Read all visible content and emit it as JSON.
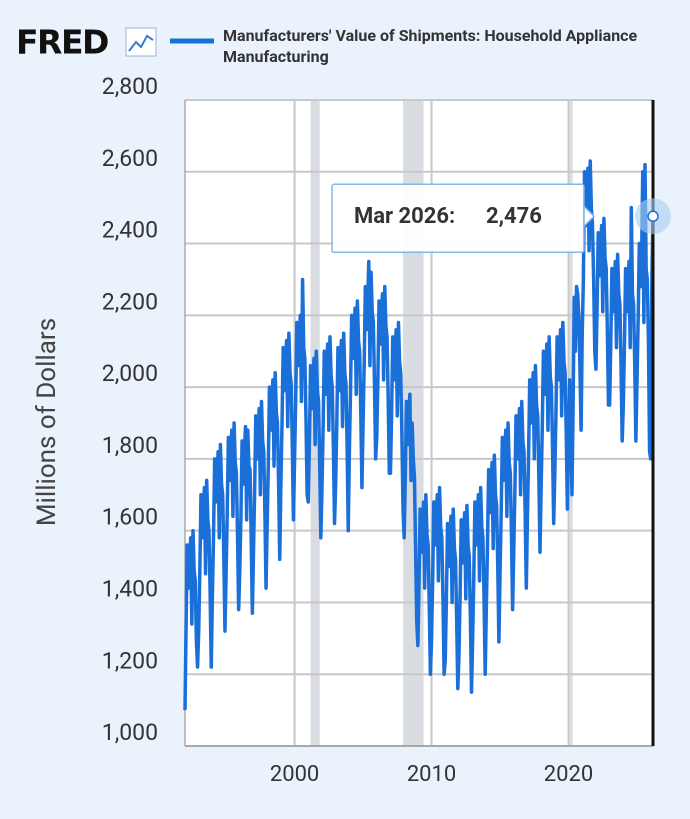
{
  "logo": "FRED",
  "chart_data": {
    "type": "line",
    "y_label": "Millions of Dollars",
    "x": [
      "1992-01",
      "1992-02",
      "1992-03",
      "1992-04",
      "1992-05",
      "1992-06",
      "1992-07",
      "1992-08",
      "1992-09",
      "1992-10",
      "1992-11",
      "1992-12",
      "1993-01",
      "1993-02",
      "1993-03",
      "1993-04",
      "1993-05",
      "1993-06",
      "1993-07",
      "1993-08",
      "1993-09",
      "1993-10",
      "1993-11",
      "1993-12",
      "1994-01",
      "1994-02",
      "1994-03",
      "1994-04",
      "1994-05",
      "1994-06",
      "1994-07",
      "1994-08",
      "1994-09",
      "1994-10",
      "1994-11",
      "1994-12",
      "1995-01",
      "1995-02",
      "1995-03",
      "1995-04",
      "1995-05",
      "1995-06",
      "1995-07",
      "1995-08",
      "1995-09",
      "1995-10",
      "1995-11",
      "1995-12",
      "1996-01",
      "1996-02",
      "1996-03",
      "1996-04",
      "1996-05",
      "1996-06",
      "1996-07",
      "1996-08",
      "1996-09",
      "1996-10",
      "1996-11",
      "1996-12",
      "1997-01",
      "1997-02",
      "1997-03",
      "1997-04",
      "1997-05",
      "1997-06",
      "1997-07",
      "1997-08",
      "1997-09",
      "1997-10",
      "1997-11",
      "1997-12",
      "1998-01",
      "1998-02",
      "1998-03",
      "1998-04",
      "1998-05",
      "1998-06",
      "1998-07",
      "1998-08",
      "1998-09",
      "1998-10",
      "1998-11",
      "1998-12",
      "1999-01",
      "1999-02",
      "1999-03",
      "1999-04",
      "1999-05",
      "1999-06",
      "1999-07",
      "1999-08",
      "1999-09",
      "1999-10",
      "1999-11",
      "1999-12",
      "2000-01",
      "2000-02",
      "2000-03",
      "2000-04",
      "2000-05",
      "2000-06",
      "2000-07",
      "2000-08",
      "2000-09",
      "2000-10",
      "2000-11",
      "2000-12",
      "2001-01",
      "2001-02",
      "2001-03",
      "2001-04",
      "2001-05",
      "2001-06",
      "2001-07",
      "2001-08",
      "2001-09",
      "2001-10",
      "2001-11",
      "2001-12",
      "2002-01",
      "2002-02",
      "2002-03",
      "2002-04",
      "2002-05",
      "2002-06",
      "2002-07",
      "2002-08",
      "2002-09",
      "2002-10",
      "2002-11",
      "2002-12",
      "2003-01",
      "2003-02",
      "2003-03",
      "2003-04",
      "2003-05",
      "2003-06",
      "2003-07",
      "2003-08",
      "2003-09",
      "2003-10",
      "2003-11",
      "2003-12",
      "2004-01",
      "2004-02",
      "2004-03",
      "2004-04",
      "2004-05",
      "2004-06",
      "2004-07",
      "2004-08",
      "2004-09",
      "2004-10",
      "2004-11",
      "2004-12",
      "2005-01",
      "2005-02",
      "2005-03",
      "2005-04",
      "2005-05",
      "2005-06",
      "2005-07",
      "2005-08",
      "2005-09",
      "2005-10",
      "2005-11",
      "2005-12",
      "2006-01",
      "2006-02",
      "2006-03",
      "2006-04",
      "2006-05",
      "2006-06",
      "2006-07",
      "2006-08",
      "2006-09",
      "2006-10",
      "2006-11",
      "2006-12",
      "2007-01",
      "2007-02",
      "2007-03",
      "2007-04",
      "2007-05",
      "2007-06",
      "2007-07",
      "2007-08",
      "2007-09",
      "2007-10",
      "2007-11",
      "2007-12",
      "2008-01",
      "2008-02",
      "2008-03",
      "2008-04",
      "2008-05",
      "2008-06",
      "2008-07",
      "2008-08",
      "2008-09",
      "2008-10",
      "2008-11",
      "2008-12",
      "2009-01",
      "2009-02",
      "2009-03",
      "2009-04",
      "2009-05",
      "2009-06",
      "2009-07",
      "2009-08",
      "2009-09",
      "2009-10",
      "2009-11",
      "2009-12",
      "2010-01",
      "2010-02",
      "2010-03",
      "2010-04",
      "2010-05",
      "2010-06",
      "2010-07",
      "2010-08",
      "2010-09",
      "2010-10",
      "2010-11",
      "2010-12",
      "2011-01",
      "2011-02",
      "2011-03",
      "2011-04",
      "2011-05",
      "2011-06",
      "2011-07",
      "2011-08",
      "2011-09",
      "2011-10",
      "2011-11",
      "2011-12",
      "2012-01",
      "2012-02",
      "2012-03",
      "2012-04",
      "2012-05",
      "2012-06",
      "2012-07",
      "2012-08",
      "2012-09",
      "2012-10",
      "2012-11",
      "2012-12",
      "2013-01",
      "2013-02",
      "2013-03",
      "2013-04",
      "2013-05",
      "2013-06",
      "2013-07",
      "2013-08",
      "2013-09",
      "2013-10",
      "2013-11",
      "2013-12",
      "2014-01",
      "2014-02",
      "2014-03",
      "2014-04",
      "2014-05",
      "2014-06",
      "2014-07",
      "2014-08",
      "2014-09",
      "2014-10",
      "2014-11",
      "2014-12",
      "2015-01",
      "2015-02",
      "2015-03",
      "2015-04",
      "2015-05",
      "2015-06",
      "2015-07",
      "2015-08",
      "2015-09",
      "2015-10",
      "2015-11",
      "2015-12",
      "2016-01",
      "2016-02",
      "2016-03",
      "2016-04",
      "2016-05",
      "2016-06",
      "2016-07",
      "2016-08",
      "2016-09",
      "2016-10",
      "2016-11",
      "2016-12",
      "2017-01",
      "2017-02",
      "2017-03",
      "2017-04",
      "2017-05",
      "2017-06",
      "2017-07",
      "2017-08",
      "2017-09",
      "2017-10",
      "2017-11",
      "2017-12",
      "2018-01",
      "2018-02",
      "2018-03",
      "2018-04",
      "2018-05",
      "2018-06",
      "2018-07",
      "2018-08",
      "2018-09",
      "2018-10",
      "2018-11",
      "2018-12",
      "2019-01",
      "2019-02",
      "2019-03",
      "2019-04",
      "2019-05",
      "2019-06",
      "2019-07",
      "2019-08",
      "2019-09",
      "2019-10",
      "2019-11",
      "2019-12",
      "2020-01",
      "2020-02",
      "2020-03",
      "2020-04",
      "2020-05",
      "2020-06",
      "2020-07",
      "2020-08",
      "2020-09",
      "2020-10",
      "2020-11",
      "2020-12",
      "2021-01",
      "2021-02",
      "2021-03",
      "2021-04",
      "2021-05",
      "2021-06",
      "2021-07",
      "2021-08",
      "2021-09",
      "2021-10",
      "2021-11",
      "2021-12",
      "2022-01",
      "2022-02",
      "2022-03",
      "2022-04",
      "2022-05",
      "2022-06",
      "2022-07",
      "2022-08",
      "2022-09",
      "2022-10",
      "2022-11",
      "2022-12",
      "2023-01",
      "2023-02",
      "2023-03",
      "2023-04",
      "2023-05",
      "2023-06",
      "2023-07",
      "2023-08",
      "2023-09",
      "2023-10",
      "2023-11",
      "2023-12",
      "2024-01",
      "2024-02",
      "2024-03",
      "2024-04",
      "2024-05",
      "2024-06",
      "2024-07",
      "2024-08",
      "2024-09",
      "2024-10",
      "2024-11",
      "2024-12",
      "2025-01",
      "2025-02",
      "2025-03",
      "2025-04",
      "2025-05",
      "2025-06",
      "2025-07",
      "2025-08",
      "2025-09",
      "2025-10",
      "2025-11",
      "2025-12",
      "2026-01",
      "2026-02",
      "2026-03"
    ],
    "series": [
      {
        "name": "Manufacturers' Value of Shipments: Household Appliance Manufacturing",
        "color": "#1a6fd8",
        "values": [
          1100,
          1350,
          1560,
          1440,
          1510,
          1580,
          1340,
          1600,
          1490,
          1460,
          1290,
          1220,
          1320,
          1490,
          1700,
          1580,
          1650,
          1720,
          1480,
          1740,
          1630,
          1600,
          1430,
          1220,
          1420,
          1590,
          1800,
          1680,
          1750,
          1820,
          1580,
          1840,
          1730,
          1700,
          1530,
          1320,
          1480,
          1650,
          1860,
          1740,
          1810,
          1880,
          1640,
          1900,
          1790,
          1760,
          1590,
          1380,
          1490,
          1640,
          1850,
          1730,
          1820,
          1890,
          1630,
          1880,
          1780,
          1770,
          1580,
          1370,
          1540,
          1710,
          1920,
          1800,
          1870,
          1940,
          1700,
          1960,
          1850,
          1820,
          1650,
          1440,
          1620,
          1790,
          2000,
          1880,
          1950,
          2020,
          1780,
          2040,
          1930,
          1900,
          1730,
          1520,
          1730,
          1900,
          2110,
          1990,
          2060,
          2130,
          1890,
          2150,
          2040,
          2010,
          1840,
          1630,
          1800,
          1970,
          2180,
          2060,
          2130,
          2200,
          1960,
          2300,
          2110,
          2080,
          1910,
          1700,
          1680,
          1850,
          2060,
          1940,
          2010,
          2080,
          1840,
          2100,
          1990,
          1960,
          1790,
          1580,
          1720,
          1890,
          2100,
          1980,
          2050,
          2120,
          1880,
          2140,
          2030,
          2000,
          1830,
          1620,
          1730,
          1900,
          2110,
          1990,
          2060,
          2130,
          1890,
          2150,
          2040,
          2010,
          1840,
          1600,
          1820,
          1990,
          2200,
          2080,
          2150,
          2220,
          1980,
          2240,
          2130,
          2100,
          1930,
          1720,
          1900,
          2070,
          2280,
          2160,
          2230,
          2350,
          2060,
          2320,
          2210,
          2180,
          2010,
          1800,
          1860,
          2030,
          2240,
          2120,
          2190,
          2260,
          2020,
          2280,
          2170,
          2140,
          1970,
          1760,
          1760,
          1930,
          2140,
          2020,
          2090,
          2160,
          1920,
          2180,
          2070,
          2040,
          1870,
          1660,
          1580,
          1750,
          1960,
          1840,
          1910,
          1980,
          1740,
          1900,
          1800,
          1750,
          1550,
          1350,
          1280,
          1450,
          1660,
          1540,
          1610,
          1680,
          1440,
          1700,
          1590,
          1560,
          1390,
          1200,
          1300,
          1470,
          1680,
          1560,
          1630,
          1700,
          1460,
          1720,
          1610,
          1580,
          1410,
          1200,
          1240,
          1410,
          1620,
          1500,
          1570,
          1640,
          1400,
          1660,
          1550,
          1520,
          1350,
          1160,
          1250,
          1420,
          1630,
          1510,
          1580,
          1650,
          1410,
          1670,
          1560,
          1530,
          1360,
          1150,
          1300,
          1470,
          1680,
          1560,
          1630,
          1700,
          1460,
          1720,
          1610,
          1580,
          1410,
          1200,
          1390,
          1560,
          1770,
          1650,
          1720,
          1790,
          1550,
          1810,
          1700,
          1670,
          1500,
          1290,
          1480,
          1650,
          1860,
          1740,
          1810,
          1880,
          1640,
          1900,
          1790,
          1760,
          1590,
          1380,
          1540,
          1710,
          1920,
          1800,
          1870,
          1940,
          1700,
          1960,
          1850,
          1820,
          1650,
          1440,
          1640,
          1810,
          2020,
          1900,
          1970,
          2040,
          1800,
          2060,
          1950,
          1920,
          1750,
          1540,
          1720,
          1890,
          2100,
          1980,
          2050,
          2120,
          1880,
          2140,
          2030,
          2000,
          1830,
          1620,
          1760,
          1930,
          2140,
          2020,
          2090,
          2160,
          1920,
          2180,
          2070,
          2040,
          1870,
          1660,
          1850,
          2020,
          1900,
          1700,
          1950,
          2250,
          2100,
          2280,
          2260,
          2200,
          2050,
          1880,
          2150,
          2300,
          2600,
          2450,
          2520,
          2610,
          2380,
          2630,
          2500,
          2450,
          2300,
          2100,
          2050,
          2220,
          2430,
          2310,
          2380,
          2450,
          2210,
          2470,
          2360,
          2330,
          2160,
          1950,
          1950,
          2120,
          2330,
          2210,
          2280,
          2350,
          2110,
          2370,
          2260,
          2230,
          2060,
          1850,
          1950,
          2120,
          2330,
          2210,
          2280,
          2350,
          2110,
          2500,
          2260,
          2230,
          2060,
          1850,
          2020,
          2190,
          2400,
          2280,
          2350,
          2600,
          2180,
          2620,
          2330,
          2300,
          2130,
          1820,
          1800,
          2300,
          2476
        ]
      }
    ],
    "xlim": [
      "1992-01",
      "2026-03"
    ],
    "xticks": [
      2000,
      2010,
      2020
    ],
    "ylim": [
      1000,
      2800
    ],
    "yticks": [
      {
        "value": 1000,
        "label": "1,000"
      },
      {
        "value": 1200,
        "label": "1,200"
      },
      {
        "value": 1400,
        "label": "1,400"
      },
      {
        "value": 1600,
        "label": "1,600"
      },
      {
        "value": 1800,
        "label": "1,800"
      },
      {
        "value": 2000,
        "label": "2,000"
      },
      {
        "value": 2200,
        "label": "2,200"
      },
      {
        "value": 2400,
        "label": "2,400"
      },
      {
        "value": 2600,
        "label": "2,600"
      },
      {
        "value": 2800,
        "label": "2,800"
      }
    ],
    "grid": true,
    "recessions": [
      [
        "2001-03",
        "2001-11"
      ],
      [
        "2007-12",
        "2009-06"
      ],
      [
        "2020-02",
        "2020-04"
      ]
    ],
    "tooltip": {
      "label": "Mar 2026:",
      "value": 2476,
      "value_label": "2,476"
    }
  }
}
